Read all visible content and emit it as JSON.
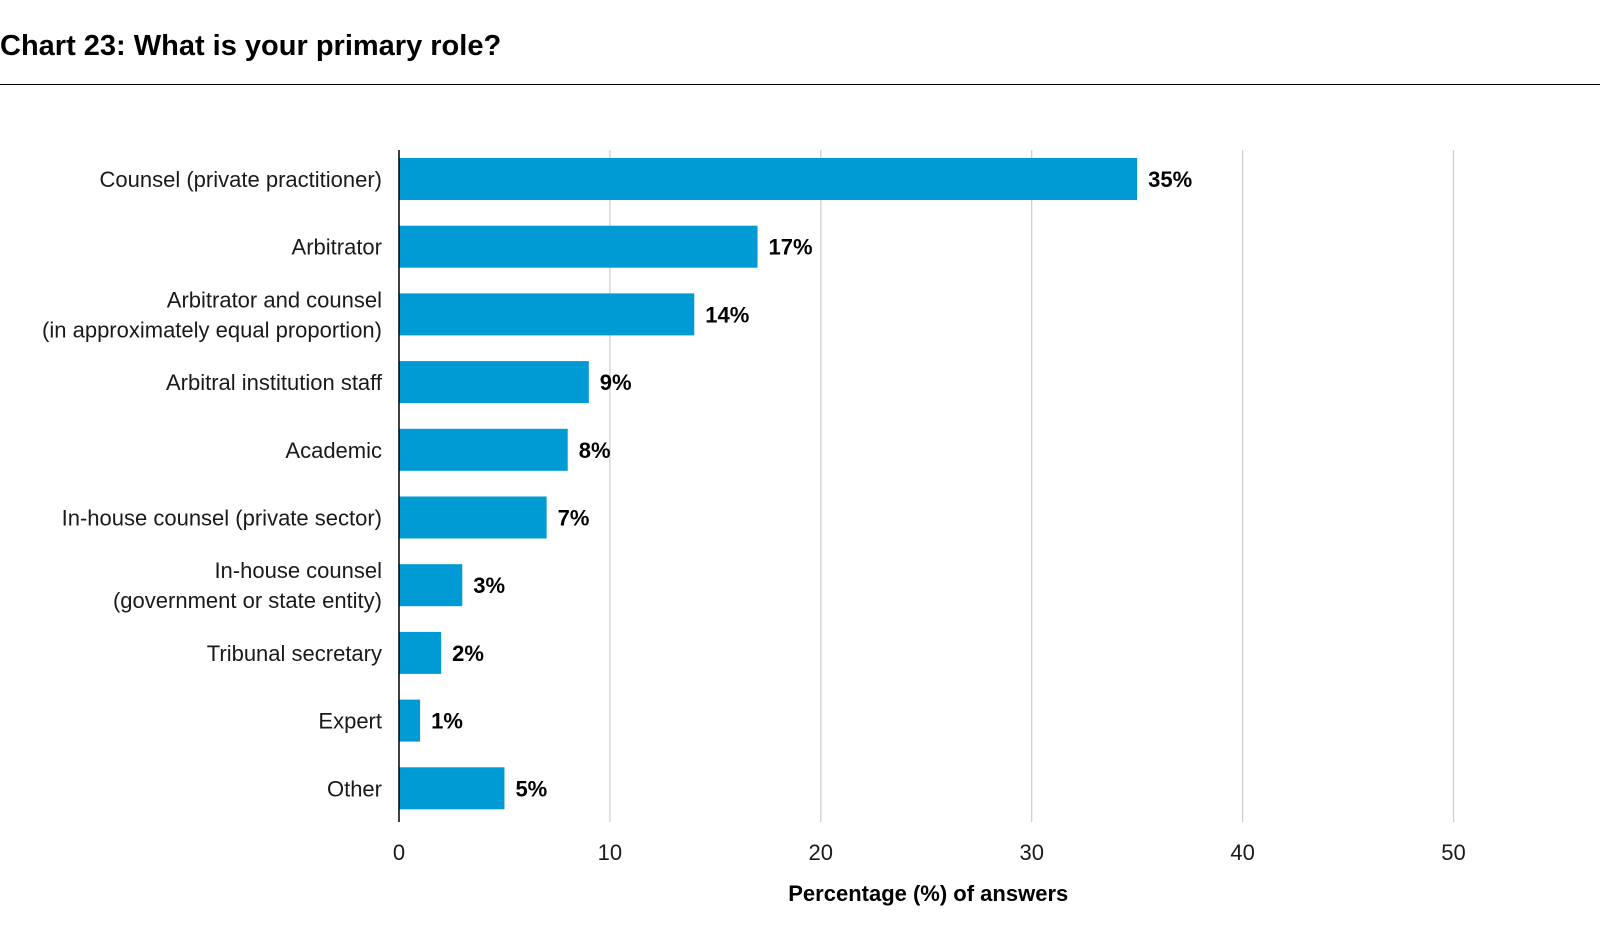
{
  "title": "Chart 23: What is your primary role?",
  "colors": {
    "bar": "#009bd5",
    "grid": "#cccccc",
    "axis": "#000000"
  },
  "chart_data": {
    "type": "bar",
    "orientation": "horizontal",
    "categories": [
      [
        "Counsel (private practitioner)"
      ],
      [
        "Arbitrator"
      ],
      [
        "Arbitrator and counsel",
        "(in approximately equal proportion)"
      ],
      [
        "Arbitral institution staff"
      ],
      [
        "Academic"
      ],
      [
        "In-house counsel (private sector)"
      ],
      [
        "In-house counsel",
        "(government or state entity)"
      ],
      [
        "Tribunal secretary"
      ],
      [
        "Expert"
      ],
      [
        "Other"
      ]
    ],
    "values": [
      35,
      17,
      14,
      9,
      8,
      7,
      3,
      2,
      1,
      5
    ],
    "value_labels": [
      "35%",
      "17%",
      "14%",
      "9%",
      "8%",
      "7%",
      "3%",
      "2%",
      "1%",
      "5%"
    ],
    "xlabel": "Percentage (%) of answers",
    "xticks": [
      0,
      10,
      20,
      30,
      40,
      50
    ],
    "xlim": [
      0,
      50
    ],
    "grid": true,
    "legend": "none"
  }
}
